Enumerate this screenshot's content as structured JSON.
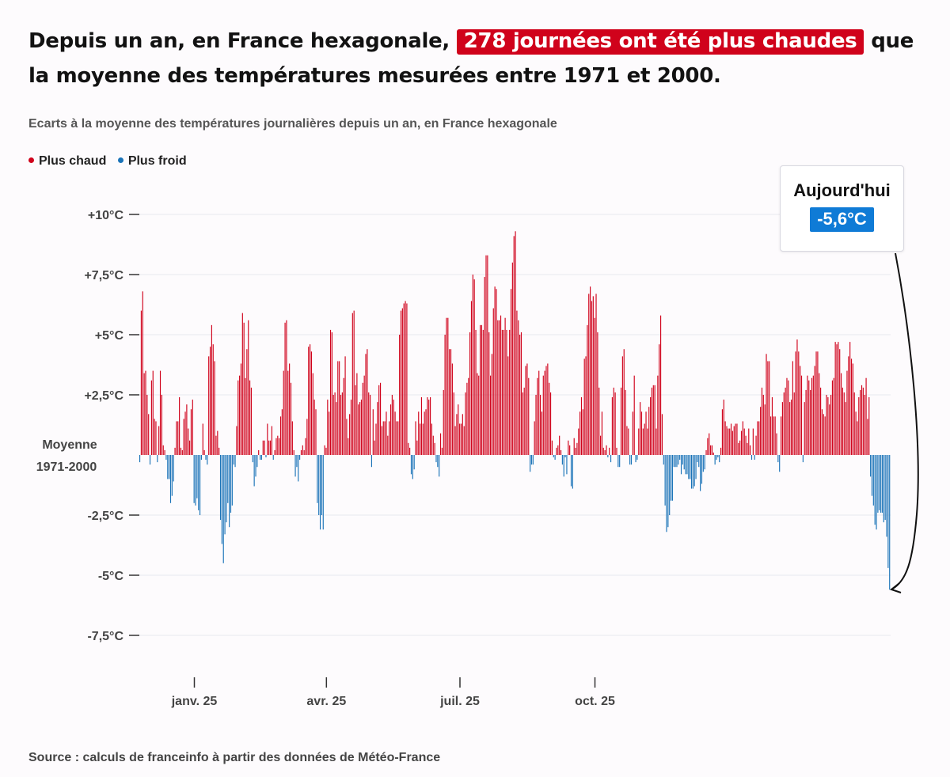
{
  "headline": {
    "before": "Depuis un an, en France hexagonale, ",
    "highlight": "278 journées ont été plus chaudes",
    "after": " que la moyenne des températures mesurées entre 1971 et 2000."
  },
  "subtitle": "Ecarts à la moyenne des températures journalières depuis un an, en France hexagonale",
  "legend": [
    {
      "label": "Plus chaud",
      "color": "#d0021b"
    },
    {
      "label": "Plus froid",
      "color": "#1a73b8"
    }
  ],
  "source": "Source : calculs de franceinfo à partir des données de Météo-France",
  "callout": {
    "title": "Aujourd'hui",
    "value": "-5,6°C"
  },
  "colors": {
    "warm": "#d0021b",
    "cold": "#1a73b8",
    "highlight": "#d0021b",
    "today": "#0f7bd6"
  },
  "chart_data": {
    "type": "bar",
    "title": "",
    "xlabel": "",
    "ylabel": "",
    "baseline_label": [
      "Moyenne",
      "1971-2000"
    ],
    "ylim": [
      -8.8,
      10
    ],
    "yticks": [
      {
        "value": 10,
        "label": "+10°C"
      },
      {
        "value": 7.5,
        "label": "+7,5°C"
      },
      {
        "value": 5,
        "label": "+5°C"
      },
      {
        "value": 2.5,
        "label": "+2,5°C"
      },
      {
        "value": -2.5,
        "label": "-2,5°C"
      },
      {
        "value": -5,
        "label": "-5°C"
      },
      {
        "value": -7.5,
        "label": "-7,5°C"
      }
    ],
    "xticks": [
      {
        "index": 37,
        "label": "janv. 25"
      },
      {
        "index": 127,
        "label": "avr. 25"
      },
      {
        "index": 218,
        "label": "juil. 25"
      },
      {
        "index": 310,
        "label": "oct. 25"
      }
    ],
    "grid": true,
    "legend_position": "top-left",
    "series": [
      {
        "name": "Plus chaud / Plus froid",
        "values": [
          -0.3,
          6,
          6.8,
          3.4,
          3.5,
          2.5,
          1.7,
          -0.4,
          3.1,
          3.5,
          1.5,
          1.4,
          -0.3,
          1.2,
          3.5,
          2.5,
          0.4,
          0.2,
          -0.2,
          -1.0,
          -1.0,
          -2.0,
          -1.7,
          -1.1,
          0.3,
          1.4,
          1.4,
          2.4,
          0.3,
          0.2,
          1.5,
          1.8,
          2.1,
          1.1,
          0.6,
          1.9,
          2.3,
          -2.0,
          -2.1,
          -1.8,
          -2.3,
          -2.5,
          -0.2,
          1.3,
          0.2,
          -0.2,
          -0.4,
          4.1,
          4.5,
          5.4,
          4.6,
          3.9,
          0.8,
          1.0,
          0.3,
          -2.7,
          -3.7,
          -4.5,
          -3.3,
          -2.8,
          -2.0,
          -3.0,
          -2.4,
          -2.1,
          -0.4,
          -0.5,
          1.2,
          3.1,
          3.3,
          3.8,
          5.9,
          5.5,
          3.2,
          4.4,
          5.6,
          3.1,
          2.8,
          -0.3,
          -1.3,
          -0.9,
          -0.5,
          0.2,
          -0.2,
          -0.2,
          0.6,
          0.6,
          -0.1,
          1.3,
          0.6,
          0.6,
          1.2,
          -0.2,
          0.2,
          0.7,
          0.8,
          0.7,
          1.6,
          1.9,
          3.5,
          5.5,
          5.6,
          3.5,
          3.8,
          3.0,
          1.4,
          0.2,
          -0.9,
          -0.5,
          -1.1,
          -0.2,
          0.2,
          0.4,
          0.2,
          0.7,
          1.5,
          4.5,
          4.6,
          4.3,
          3.4,
          2.3,
          1.9,
          -2.0,
          -2.5,
          -3.1,
          -2.5,
          -3.1,
          0.4,
          0.3,
          2.3,
          1.8,
          5.2,
          5.1,
          2.5,
          2.6,
          2.2,
          3.9,
          3.9,
          2.5,
          2.6,
          3.2,
          4.1,
          1.5,
          0.7,
          1.7,
          2.3,
          5.9,
          6.0,
          2.9,
          3.4,
          2.1,
          2.2,
          2.3,
          3.0,
          3.3,
          4.2,
          4.4,
          2.6,
          2.5,
          -0.5,
          1.9,
          0.6,
          1.3,
          2.2,
          2.9,
          3.0,
          1.2,
          1.4,
          1.4,
          1.8,
          0.8,
          1.4,
          2.1,
          2.5,
          2.3,
          1.8,
          1.4,
          1.4,
          5.0,
          6.0,
          6.1,
          6.3,
          6.4,
          6.3,
          0.5,
          0.3,
          -0.8,
          -1.0,
          -0.6,
          1.4,
          0.6,
          1.8,
          1.3,
          2.4,
          1.3,
          1.8,
          1.9,
          2.4,
          2.3,
          2.4,
          1.3,
          0.8,
          0.5,
          -0.3,
          -0.5,
          -0.9,
          0.9,
          0.3,
          2.7,
          5.0,
          5.7,
          5.7,
          4.4,
          4.4,
          3.8,
          2.6,
          1.2,
          1.7,
          2.1,
          1.3,
          1.3,
          1.7,
          1.2,
          2.6,
          3.0,
          3.2,
          5.1,
          6.4,
          7.5,
          7.3,
          5.2,
          3.4,
          3.3,
          5.4,
          5.4,
          5.2,
          7.4,
          8.3,
          8.3,
          5.1,
          3.3,
          4.2,
          6.1,
          7.0,
          6.9,
          5.6,
          5.6,
          5.8,
          5.2,
          5.2,
          5.7,
          5.2,
          4.1,
          5.2,
          6.9,
          8.0,
          9.1,
          9.3,
          6.0,
          5.6,
          5.0,
          5.1,
          2.6,
          2.8,
          3.7,
          3.8,
          3.2,
          -0.7,
          -0.4,
          -0.4,
          1.4,
          2.5,
          3.2,
          3.5,
          2.5,
          1.8,
          3.3,
          3.5,
          3.7,
          3.8,
          3.0,
          2.6,
          0.6,
          -0.1,
          -0.2,
          0.3,
          0.4,
          0.8,
          0.2,
          -0.4,
          -0.9,
          -0.1,
          -0.8,
          0.6,
          0.4,
          -1.3,
          -1.4,
          0.7,
          0.3,
          0.5,
          1.1,
          1.8,
          2.4,
          1.9,
          4.0,
          4.1,
          5.4,
          6.7,
          7.0,
          6.4,
          6.6,
          5.7,
          6.7,
          5.1,
          2.8,
          0.8,
          1.8,
          0.3,
          0.2,
          0.4,
          -0.1,
          0.3,
          -0.3,
          2.4,
          2.8,
          2.6,
          0.3,
          -0.5,
          -0.5,
          2.8,
          4.1,
          4.4,
          2.7,
          1.2,
          1.1,
          -0.4,
          -0.4,
          1.8,
          3.3,
          -0.3,
          -0.2,
          1.1,
          2.2,
          1.8,
          1.1,
          1.3,
          1.8,
          1.1,
          2.0,
          2.4,
          2.8,
          2.9,
          2.9,
          1.1,
          3.3,
          4.6,
          5.8,
          1.7,
          -0.4,
          -2.1,
          -3.2,
          -3.0,
          -2.5,
          -1.9,
          -1.9,
          -0.5,
          -0.5,
          -0.5,
          -0.4,
          -0.2,
          -0.8,
          -0.4,
          -0.6,
          -0.8,
          -0.8,
          -1.0,
          -1.0,
          -1.4,
          -1.4,
          -1.3,
          -1.0,
          -0.3,
          -0.5,
          -1.5,
          -1.2,
          -0.7,
          -0.6,
          0.2,
          0.7,
          0.9,
          0.4,
          0.4,
          0.1,
          -0.4,
          -0.2,
          -0.1,
          -0.3,
          0.3,
          1.9,
          2.3,
          1.4,
          1.2,
          1.1,
          1.1,
          1.3,
          1.0,
          1.2,
          1.3,
          1.3,
          0.5,
          0.6,
          1.0,
          1.4,
          1.1,
          0.8,
          0.5,
          1.1,
          0.4,
          -0.2,
          1.1,
          -0.2,
          0.8,
          1.4,
          1.4,
          2.0,
          2.8,
          2.5,
          2.1,
          4.2,
          3.9,
          3.9,
          1.6,
          2.4,
          1.6,
          1.6,
          0.9,
          -0.3,
          -0.7,
          1.6,
          2.2,
          2.6,
          2.8,
          3.2,
          3.1,
          2.2,
          2.3,
          3.9,
          2.6,
          4.3,
          4.8,
          4.3,
          3.7,
          3.3,
          -0.3,
          2.2,
          2.7,
          3.3,
          3.1,
          2.7,
          3.2,
          3.3,
          3.7,
          4.3,
          4.3,
          3.4,
          2.8,
          1.9,
          1.7,
          1.6,
          2.5,
          2.4,
          2.1,
          2.5,
          3.1,
          3.2,
          4.7,
          4.6,
          4.7,
          4.4,
          3.4,
          2.8,
          2.6,
          2.2,
          3.5,
          4.1,
          4.7,
          4.0,
          3.8,
          2.6,
          1.8,
          1.4,
          2.4,
          2.7,
          2.9,
          2.8,
          2.5,
          3.2,
          1.5,
          2.4,
          -0.9,
          -1.7,
          -2.1,
          -2.9,
          -3.1,
          -2.4,
          -2.3,
          -2.4,
          -2.4,
          -2.8,
          -2.7,
          -3.4,
          -4.7,
          -5.6
        ]
      }
    ]
  }
}
